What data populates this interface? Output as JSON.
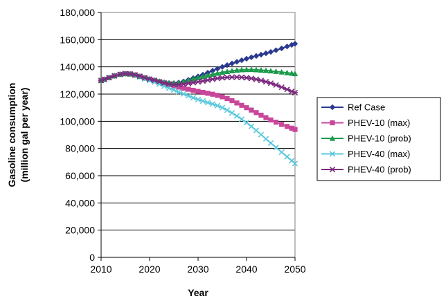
{
  "chart_data": {
    "type": "line",
    "xlabel": "Year",
    "ylabel": [
      "Gasoline consumption",
      "(million gal per year)"
    ],
    "xlim": [
      2010,
      2050
    ],
    "ylim": [
      0,
      180000
    ],
    "xticks": [
      2010,
      2020,
      2030,
      2040,
      2050
    ],
    "xtick_labels": [
      "2010",
      "2020",
      "2030",
      "2040",
      "2050"
    ],
    "yticks": [
      0,
      20000,
      40000,
      60000,
      80000,
      100000,
      120000,
      140000,
      160000,
      180000
    ],
    "ytick_labels": [
      "0",
      "20,000",
      "40,000",
      "60,000",
      "80,000",
      "100,000",
      "120,000",
      "140,000",
      "160,000",
      "180,000"
    ],
    "grid": "horizontal",
    "legend_position": "right",
    "x": [
      2010,
      2015,
      2020,
      2025,
      2030,
      2035,
      2040,
      2045,
      2050
    ],
    "series": [
      {
        "name": "Ref Case",
        "marker": "diamond",
        "color": "#2b3a8f",
        "values": [
          130000,
          135000,
          131000,
          128000,
          133000,
          140000,
          146000,
          151000,
          157000
        ]
      },
      {
        "name": "PHEV-10 (max)",
        "marker": "square",
        "color": "#c9479b",
        "values": [
          130000,
          135000,
          131000,
          126000,
          122000,
          118000,
          110000,
          101000,
          94000
        ]
      },
      {
        "name": "PHEV-10 (prob)",
        "marker": "triangle",
        "color": "#1a9a4a",
        "values": [
          130000,
          135000,
          131000,
          128000,
          132000,
          136000,
          138000,
          137000,
          135000
        ]
      },
      {
        "name": "PHEV-40 (max)",
        "marker": "x",
        "color": "#5ac8dc",
        "values": [
          130000,
          135000,
          130000,
          123000,
          116000,
          110000,
          99000,
          84000,
          69000
        ]
      },
      {
        "name": "PHEV-40 (prob)",
        "marker": "star",
        "color": "#7b2a7f",
        "values": [
          130000,
          135000,
          131000,
          127000,
          129000,
          132000,
          132000,
          128000,
          121000
        ]
      }
    ]
  }
}
